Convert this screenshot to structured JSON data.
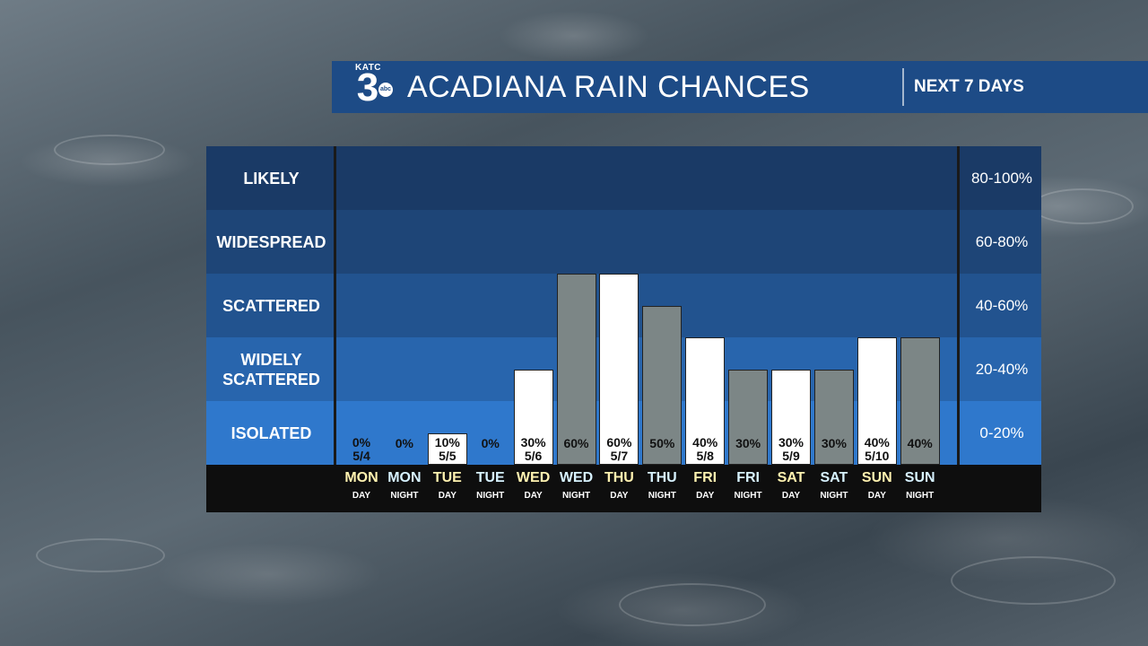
{
  "header": {
    "logo_text": "KATC",
    "logo_number": "3",
    "logo_network": "abc",
    "title": "ACADIANA RAIN CHANCES",
    "subtitle": "NEXT 7 DAYS"
  },
  "colors": {
    "header_bg": "#1d4b86",
    "day_bar": "#ffffff",
    "night_bar": "#7c8686",
    "day_text": "#fff2b0",
    "night_text": "#d7f2ff"
  },
  "chart_data": {
    "type": "bar",
    "ylim": [
      0,
      100
    ],
    "bands": [
      {
        "label": "LIKELY",
        "range": "80-100%",
        "color": "#1a3a66"
      },
      {
        "label": "WIDESPREAD",
        "range": "60-80%",
        "color": "#1e4577"
      },
      {
        "label": "SCATTERED",
        "range": "40-60%",
        "color": "#22538f"
      },
      {
        "label": "WIDELY SCATTERED",
        "range": "20-40%",
        "color": "#2865ad"
      },
      {
        "label": "ISOLATED",
        "range": "0-20%",
        "color": "#2f78cc"
      }
    ],
    "periods": [
      {
        "day": "MON",
        "part": "DAY",
        "value": 0,
        "label": "0%",
        "date": "5/4",
        "type": "day"
      },
      {
        "day": "MON",
        "part": "NIGHT",
        "value": 0,
        "label": "0%",
        "date": "",
        "type": "night"
      },
      {
        "day": "TUE",
        "part": "DAY",
        "value": 10,
        "label": "10%",
        "date": "5/5",
        "type": "day"
      },
      {
        "day": "TUE",
        "part": "NIGHT",
        "value": 0,
        "label": "0%",
        "date": "",
        "type": "night"
      },
      {
        "day": "WED",
        "part": "DAY",
        "value": 30,
        "label": "30%",
        "date": "5/6",
        "type": "day"
      },
      {
        "day": "WED",
        "part": "NIGHT",
        "value": 60,
        "label": "60%",
        "date": "",
        "type": "night"
      },
      {
        "day": "THU",
        "part": "DAY",
        "value": 60,
        "label": "60%",
        "date": "5/7",
        "type": "day"
      },
      {
        "day": "THU",
        "part": "NIGHT",
        "value": 50,
        "label": "50%",
        "date": "",
        "type": "night"
      },
      {
        "day": "FRI",
        "part": "DAY",
        "value": 40,
        "label": "40%",
        "date": "5/8",
        "type": "day"
      },
      {
        "day": "FRI",
        "part": "NIGHT",
        "value": 30,
        "label": "30%",
        "date": "",
        "type": "night"
      },
      {
        "day": "SAT",
        "part": "DAY",
        "value": 30,
        "label": "30%",
        "date": "5/9",
        "type": "day"
      },
      {
        "day": "SAT",
        "part": "NIGHT",
        "value": 30,
        "label": "30%",
        "date": "",
        "type": "night"
      },
      {
        "day": "SUN",
        "part": "DAY",
        "value": 40,
        "label": "40%",
        "date": "5/10",
        "type": "day"
      },
      {
        "day": "SUN",
        "part": "NIGHT",
        "value": 40,
        "label": "40%",
        "date": "",
        "type": "night"
      }
    ]
  }
}
